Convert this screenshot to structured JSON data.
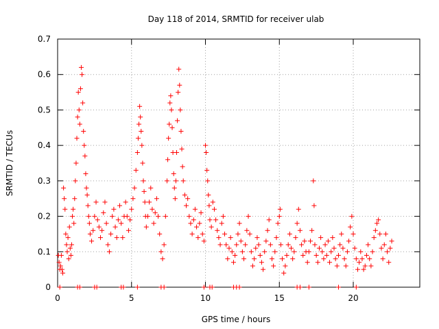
{
  "chart_data": {
    "type": "scatter",
    "title": "Day 118 of 2014, SRMTID for receiver ulab",
    "xlabel": "GPS time / hours",
    "ylabel": "SRMTID / TECUs",
    "xlim": [
      0,
      24.5
    ],
    "ylim": [
      0,
      0.7
    ],
    "xticks": [
      0,
      5,
      10,
      15,
      20
    ],
    "yticks": [
      0,
      0.1,
      0.2,
      0.3,
      0.4,
      0.5,
      0.6,
      0.7
    ],
    "grid": true,
    "marker": "+",
    "series": [
      {
        "name": "SRMTID",
        "color": "#ff0000",
        "points": [
          [
            0.05,
            0.09
          ],
          [
            0.1,
            0.07
          ],
          [
            0.15,
            0.05
          ],
          [
            0.2,
            0.06
          ],
          [
            0.25,
            0.09
          ],
          [
            0.3,
            0.05
          ],
          [
            0.35,
            0.04
          ],
          [
            0.4,
            0.28
          ],
          [
            0.45,
            0.25
          ],
          [
            0.5,
            0.22
          ],
          [
            0.55,
            0.15
          ],
          [
            0.6,
            0.12
          ],
          [
            0.65,
            0.1
          ],
          [
            0.7,
            0.14
          ],
          [
            0.75,
            0.08
          ],
          [
            0.8,
            0.17
          ],
          [
            0.85,
            0.11
          ],
          [
            0.9,
            0.09
          ],
          [
            0.95,
            0.12
          ],
          [
            1.0,
            0.2
          ],
          [
            1.05,
            0.22
          ],
          [
            1.1,
            0.18
          ],
          [
            1.15,
            0.25
          ],
          [
            1.2,
            0.3
          ],
          [
            1.25,
            0.35
          ],
          [
            1.3,
            0.42
          ],
          [
            1.35,
            0.48
          ],
          [
            1.4,
            0.55
          ],
          [
            1.45,
            0.5
          ],
          [
            1.5,
            0.46
          ],
          [
            1.55,
            0.56
          ],
          [
            1.6,
            0.62
          ],
          [
            1.65,
            0.6
          ],
          [
            1.7,
            0.52
          ],
          [
            1.75,
            0.44
          ],
          [
            1.8,
            0.4
          ],
          [
            1.85,
            0.37
          ],
          [
            1.9,
            0.32
          ],
          [
            1.95,
            0.28
          ],
          [
            2.0,
            0.26
          ],
          [
            2.05,
            0.23
          ],
          [
            2.1,
            0.2
          ],
          [
            2.15,
            0.18
          ],
          [
            2.2,
            0.15
          ],
          [
            2.3,
            0.13
          ],
          [
            2.4,
            0.16
          ],
          [
            2.5,
            0.2
          ],
          [
            2.6,
            0.24
          ],
          [
            2.7,
            0.19
          ],
          [
            2.8,
            0.17
          ],
          [
            2.9,
            0.14
          ],
          [
            3.0,
            0.16
          ],
          [
            3.1,
            0.21
          ],
          [
            3.2,
            0.24
          ],
          [
            3.3,
            0.18
          ],
          [
            3.4,
            0.12
          ],
          [
            3.5,
            0.1
          ],
          [
            3.6,
            0.15
          ],
          [
            3.7,
            0.2
          ],
          [
            3.8,
            0.22
          ],
          [
            3.9,
            0.17
          ],
          [
            4.0,
            0.14
          ],
          [
            4.1,
            0.19
          ],
          [
            4.2,
            0.23
          ],
          [
            4.3,
            0.18
          ],
          [
            4.4,
            0.14
          ],
          [
            4.5,
            0.2
          ],
          [
            4.6,
            0.24
          ],
          [
            4.7,
            0.2
          ],
          [
            4.8,
            0.16
          ],
          [
            4.9,
            0.19
          ],
          [
            5.0,
            0.22
          ],
          [
            5.1,
            0.25
          ],
          [
            5.2,
            0.28
          ],
          [
            5.3,
            0.33
          ],
          [
            5.4,
            0.38
          ],
          [
            5.45,
            0.42
          ],
          [
            5.5,
            0.46
          ],
          [
            5.55,
            0.51
          ],
          [
            5.6,
            0.48
          ],
          [
            5.65,
            0.44
          ],
          [
            5.7,
            0.4
          ],
          [
            5.75,
            0.35
          ],
          [
            5.8,
            0.3
          ],
          [
            5.85,
            0.27
          ],
          [
            5.9,
            0.24
          ],
          [
            5.95,
            0.2
          ],
          [
            6.0,
            0.17
          ],
          [
            6.1,
            0.2
          ],
          [
            6.2,
            0.24
          ],
          [
            6.3,
            0.28
          ],
          [
            6.4,
            0.22
          ],
          [
            6.5,
            0.18
          ],
          [
            6.6,
            0.21
          ],
          [
            6.7,
            0.25
          ],
          [
            6.8,
            0.2
          ],
          [
            6.9,
            0.15
          ],
          [
            7.0,
            0.1
          ],
          [
            7.1,
            0.08
          ],
          [
            7.2,
            0.12
          ],
          [
            7.3,
            0.2
          ],
          [
            7.4,
            0.3
          ],
          [
            7.45,
            0.36
          ],
          [
            7.5,
            0.42
          ],
          [
            7.55,
            0.46
          ],
          [
            7.6,
            0.52
          ],
          [
            7.65,
            0.54
          ],
          [
            7.7,
            0.5
          ],
          [
            7.75,
            0.45
          ],
          [
            7.8,
            0.38
          ],
          [
            7.85,
            0.32
          ],
          [
            7.9,
            0.28
          ],
          [
            7.95,
            0.25
          ],
          [
            8.0,
            0.3
          ],
          [
            8.05,
            0.38
          ],
          [
            8.1,
            0.47
          ],
          [
            8.15,
            0.55
          ],
          [
            8.2,
            0.615
          ],
          [
            8.25,
            0.57
          ],
          [
            8.3,
            0.5
          ],
          [
            8.35,
            0.44
          ],
          [
            8.4,
            0.39
          ],
          [
            8.45,
            0.34
          ],
          [
            8.5,
            0.3
          ],
          [
            8.6,
            0.26
          ],
          [
            8.7,
            0.23
          ],
          [
            8.8,
            0.25
          ],
          [
            8.9,
            0.2
          ],
          [
            9.0,
            0.18
          ],
          [
            9.1,
            0.15
          ],
          [
            9.2,
            0.19
          ],
          [
            9.3,
            0.22
          ],
          [
            9.4,
            0.17
          ],
          [
            9.5,
            0.14
          ],
          [
            9.6,
            0.18
          ],
          [
            9.7,
            0.21
          ],
          [
            9.8,
            0.15
          ],
          [
            9.9,
            0.13
          ],
          [
            10.0,
            0.4
          ],
          [
            10.05,
            0.38
          ],
          [
            10.1,
            0.33
          ],
          [
            10.15,
            0.3
          ],
          [
            10.2,
            0.26
          ],
          [
            10.25,
            0.23
          ],
          [
            10.3,
            0.19
          ],
          [
            10.4,
            0.17
          ],
          [
            10.5,
            0.24
          ],
          [
            10.6,
            0.22
          ],
          [
            10.7,
            0.19
          ],
          [
            10.8,
            0.16
          ],
          [
            10.9,
            0.14
          ],
          [
            11.0,
            0.12
          ],
          [
            11.1,
            0.18
          ],
          [
            11.2,
            0.2
          ],
          [
            11.3,
            0.15
          ],
          [
            11.4,
            0.12
          ],
          [
            11.5,
            0.08
          ],
          [
            11.6,
            0.11
          ],
          [
            11.7,
            0.14
          ],
          [
            11.8,
            0.1
          ],
          [
            11.9,
            0.07
          ],
          [
            12.0,
            0.09
          ],
          [
            12.1,
            0.12
          ],
          [
            12.2,
            0.15
          ],
          [
            12.3,
            0.18
          ],
          [
            12.4,
            0.13
          ],
          [
            12.5,
            0.1
          ],
          [
            12.6,
            0.08
          ],
          [
            12.7,
            0.12
          ],
          [
            12.8,
            0.16
          ],
          [
            12.9,
            0.2
          ],
          [
            13.0,
            0.15
          ],
          [
            13.1,
            0.1
          ],
          [
            13.2,
            0.06
          ],
          [
            13.3,
            0.08
          ],
          [
            13.4,
            0.11
          ],
          [
            13.5,
            0.14
          ],
          [
            13.6,
            0.12
          ],
          [
            13.7,
            0.09
          ],
          [
            13.8,
            0.07
          ],
          [
            13.9,
            0.05
          ],
          [
            14.0,
            0.1
          ],
          [
            14.1,
            0.13
          ],
          [
            14.2,
            0.16
          ],
          [
            14.3,
            0.19
          ],
          [
            14.4,
            0.12
          ],
          [
            14.5,
            0.08
          ],
          [
            14.6,
            0.06
          ],
          [
            14.7,
            0.1
          ],
          [
            14.8,
            0.14
          ],
          [
            14.9,
            0.18
          ],
          [
            15.0,
            0.2
          ],
          [
            15.05,
            0.22
          ],
          [
            15.1,
            0.12
          ],
          [
            15.2,
            0.08
          ],
          [
            15.3,
            0.04
          ],
          [
            15.4,
            0.06
          ],
          [
            15.5,
            0.09
          ],
          [
            15.6,
            0.12
          ],
          [
            15.7,
            0.15
          ],
          [
            15.8,
            0.11
          ],
          [
            15.9,
            0.08
          ],
          [
            16.0,
            0.1
          ],
          [
            16.1,
            0.14
          ],
          [
            16.2,
            0.18
          ],
          [
            16.3,
            0.22
          ],
          [
            16.4,
            0.16
          ],
          [
            16.5,
            0.12
          ],
          [
            16.6,
            0.09
          ],
          [
            16.7,
            0.13
          ],
          [
            16.8,
            0.1
          ],
          [
            16.9,
            0.07
          ],
          [
            17.0,
            0.1
          ],
          [
            17.1,
            0.13
          ],
          [
            17.2,
            0.16
          ],
          [
            17.3,
            0.3
          ],
          [
            17.35,
            0.23
          ],
          [
            17.4,
            0.12
          ],
          [
            17.5,
            0.09
          ],
          [
            17.6,
            0.07
          ],
          [
            17.7,
            0.11
          ],
          [
            17.8,
            0.14
          ],
          [
            17.9,
            0.1
          ],
          [
            18.0,
            0.08
          ],
          [
            18.1,
            0.12
          ],
          [
            18.2,
            0.09
          ],
          [
            18.3,
            0.13
          ],
          [
            18.4,
            0.07
          ],
          [
            18.5,
            0.1
          ],
          [
            18.6,
            0.14
          ],
          [
            18.7,
            0.11
          ],
          [
            18.8,
            0.08
          ],
          [
            18.9,
            0.06
          ],
          [
            19.0,
            0.09
          ],
          [
            19.1,
            0.12
          ],
          [
            19.2,
            0.15
          ],
          [
            19.3,
            0.11
          ],
          [
            19.4,
            0.08
          ],
          [
            19.5,
            0.06
          ],
          [
            19.6,
            0.1
          ],
          [
            19.7,
            0.13
          ],
          [
            19.8,
            0.17
          ],
          [
            19.9,
            0.2
          ],
          [
            20.0,
            0.15
          ],
          [
            20.1,
            0.11
          ],
          [
            20.2,
            0.08
          ],
          [
            20.3,
            0.05
          ],
          [
            20.4,
            0.07
          ],
          [
            20.5,
            0.1
          ],
          [
            20.6,
            0.08
          ],
          [
            20.7,
            0.05
          ],
          [
            20.8,
            0.06
          ],
          [
            20.9,
            0.09
          ],
          [
            21.0,
            0.12
          ],
          [
            21.1,
            0.08
          ],
          [
            21.2,
            0.06
          ],
          [
            21.3,
            0.1
          ],
          [
            21.4,
            0.14
          ],
          [
            21.5,
            0.16
          ],
          [
            21.6,
            0.18
          ],
          [
            21.7,
            0.19
          ],
          [
            21.8,
            0.15
          ],
          [
            21.9,
            0.11
          ],
          [
            22.0,
            0.08
          ],
          [
            22.1,
            0.12
          ],
          [
            22.2,
            0.15
          ],
          [
            22.3,
            0.1
          ],
          [
            22.4,
            0.07
          ],
          [
            22.5,
            0.11
          ],
          [
            22.6,
            0.13
          ],
          [
            0.15,
            0.0
          ],
          [
            1.35,
            0.0
          ],
          [
            1.5,
            0.0
          ],
          [
            2.5,
            0.0
          ],
          [
            2.65,
            0.0
          ],
          [
            4.3,
            0.0
          ],
          [
            4.45,
            0.0
          ],
          [
            5.4,
            0.0
          ],
          [
            7.0,
            0.0
          ],
          [
            7.2,
            0.0
          ],
          [
            9.9,
            0.0
          ],
          [
            10.3,
            0.0
          ],
          [
            10.45,
            0.0
          ],
          [
            11.9,
            0.0
          ],
          [
            12.1,
            0.0
          ],
          [
            12.3,
            0.0
          ],
          [
            16.2,
            0.0
          ],
          [
            16.4,
            0.0
          ],
          [
            17.0,
            0.0
          ],
          [
            19.0,
            0.0
          ],
          [
            20.2,
            0.0
          ]
        ]
      }
    ]
  }
}
